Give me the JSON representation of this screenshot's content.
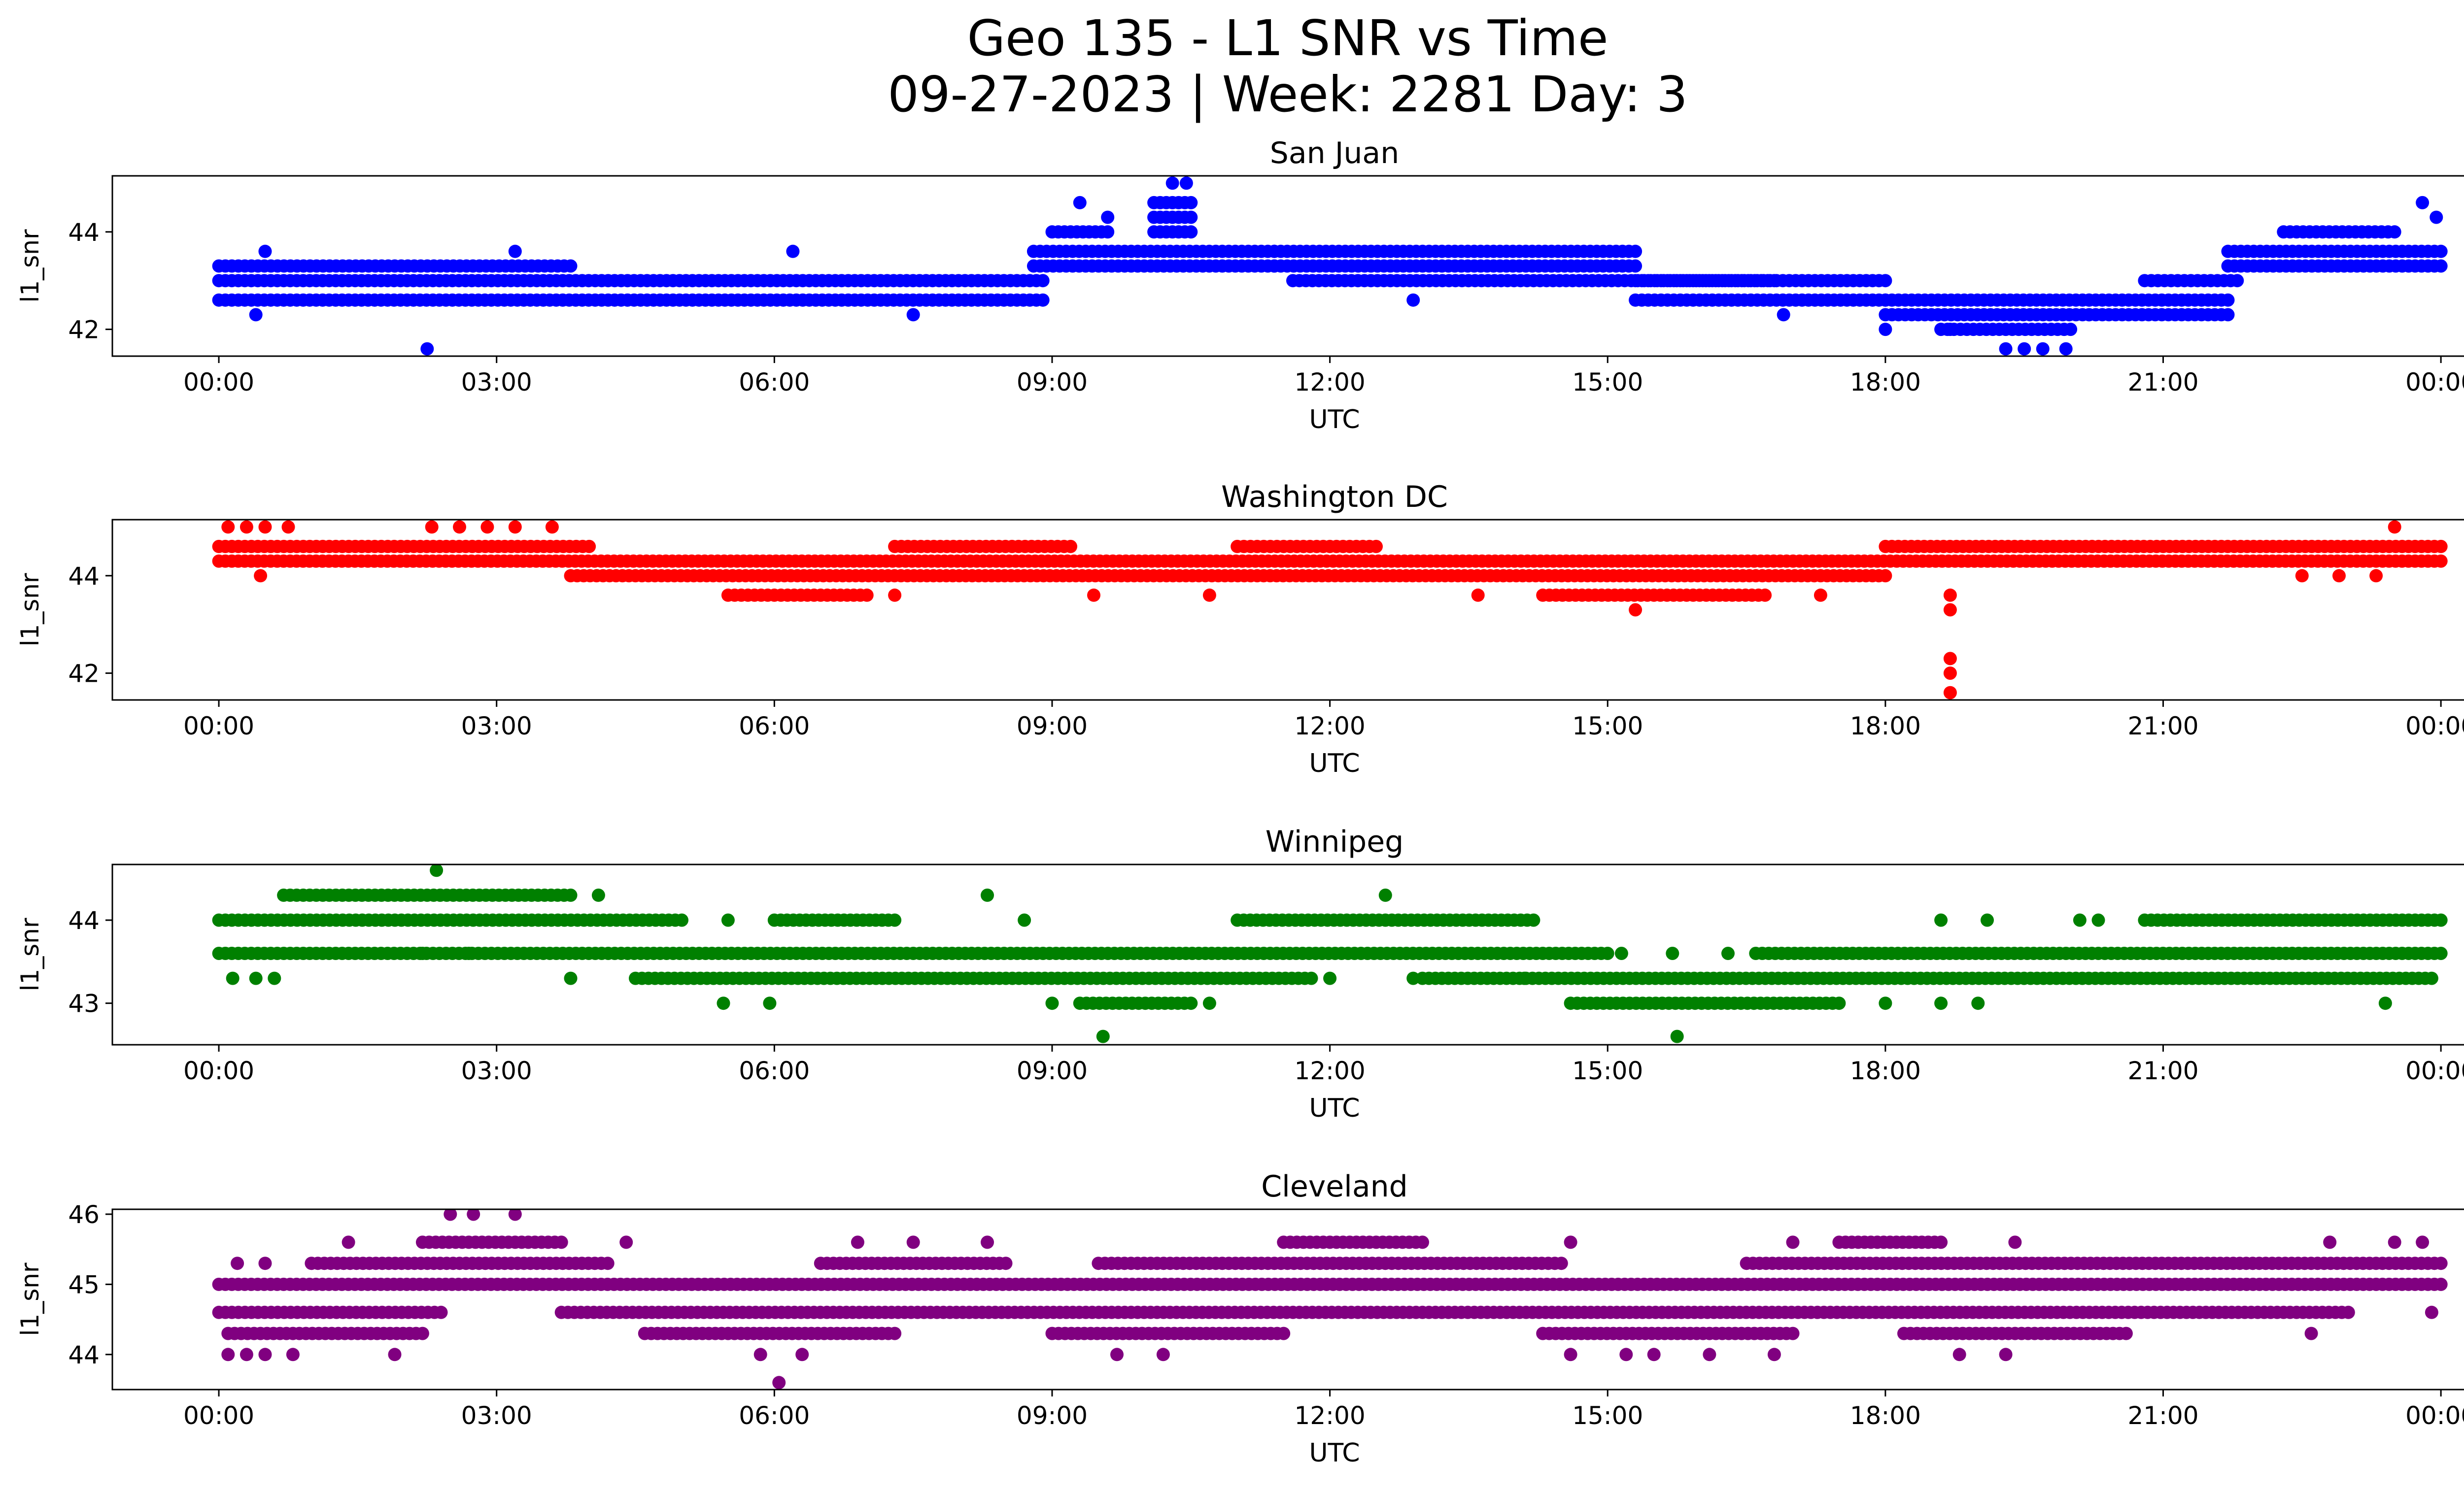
{
  "figure": {
    "title_line1": "Geo 135 - L1 SNR vs Time",
    "title_line2": "09-27-2023 | Week: 2281 Day: 3"
  },
  "chart_data": [
    {
      "type": "scatter",
      "title": "San Juan",
      "xlabel": "UTC",
      "ylabel": "l1_snr",
      "color": "#0000ff",
      "x_unit": "hours UTC",
      "xlim": [
        -1.15,
        25.25
      ],
      "ylim": [
        41.45,
        45.15
      ],
      "x_ticks": [
        0,
        3,
        6,
        9,
        12,
        15,
        18,
        21,
        24
      ],
      "x_tick_labels": [
        "00:00",
        "03:00",
        "06:00",
        "09:00",
        "12:00",
        "15:00",
        "18:00",
        "21:00",
        "00:00"
      ],
      "y_ticks": [
        42,
        44
      ],
      "segments": [
        {
          "x_from": 0.0,
          "x_to": 8.9,
          "levels": [
            42.6,
            43.0
          ]
        },
        {
          "x_from": 0.0,
          "x_to": 3.8,
          "levels": [
            43.3
          ]
        },
        {
          "x_from": 8.8,
          "x_to": 11.4,
          "levels": [
            43.3,
            43.6
          ]
        },
        {
          "x_from": 9.0,
          "x_to": 9.6,
          "levels": [
            44.0
          ]
        },
        {
          "x_from": 10.1,
          "x_to": 10.5,
          "levels": [
            44.0,
            44.3,
            44.6
          ]
        },
        {
          "x_from": 11.4,
          "x_to": 15.3,
          "levels": [
            43.3,
            43.6
          ]
        },
        {
          "x_from": 11.6,
          "x_to": 16.8,
          "levels": [
            43.0
          ]
        },
        {
          "x_from": 15.3,
          "x_to": 18.0,
          "levels": [
            43.0,
            42.6
          ]
        },
        {
          "x_from": 18.0,
          "x_to": 20.2,
          "levels": [
            42.3,
            42.6
          ]
        },
        {
          "x_from": 18.6,
          "x_to": 20.0,
          "levels": [
            42.0
          ]
        },
        {
          "x_from": 20.2,
          "x_to": 21.7,
          "levels": [
            42.3,
            42.6
          ]
        },
        {
          "x_from": 20.8,
          "x_to": 21.8,
          "levels": [
            43.0
          ]
        },
        {
          "x_from": 21.7,
          "x_to": 24.0,
          "levels": [
            43.3,
            43.6
          ]
        },
        {
          "x_from": 22.3,
          "x_to": 23.5,
          "levels": [
            44.0
          ]
        }
      ],
      "points": [
        [
          0.5,
          43.6
        ],
        [
          2.25,
          41.6
        ],
        [
          6.2,
          43.6
        ],
        [
          9.3,
          44.6
        ],
        [
          9.6,
          44.3
        ],
        [
          10.3,
          45.0
        ],
        [
          10.45,
          45.0
        ],
        [
          19.3,
          41.6
        ],
        [
          19.7,
          41.6
        ],
        [
          19.5,
          41.6
        ],
        [
          19.95,
          41.6
        ],
        [
          18.7,
          42.0
        ],
        [
          23.8,
          44.6
        ],
        [
          23.95,
          44.3
        ],
        [
          0.4,
          42.3
        ],
        [
          7.5,
          42.3
        ],
        [
          12.9,
          42.6
        ],
        [
          16.9,
          42.3
        ],
        [
          18.0,
          42.0
        ],
        [
          3.2,
          43.6
        ]
      ]
    },
    {
      "type": "scatter",
      "title": "Washington DC",
      "xlabel": "UTC",
      "ylabel": "l1_snr",
      "color": "#ff0000",
      "x_unit": "hours UTC",
      "xlim": [
        -1.15,
        25.25
      ],
      "ylim": [
        41.45,
        45.15
      ],
      "x_ticks": [
        0,
        3,
        6,
        9,
        12,
        15,
        18,
        21,
        24
      ],
      "x_tick_labels": [
        "00:00",
        "03:00",
        "06:00",
        "09:00",
        "12:00",
        "15:00",
        "18:00",
        "21:00",
        "00:00"
      ],
      "y_ticks": [
        42,
        44
      ],
      "segments": [
        {
          "x_from": 0.0,
          "x_to": 24.0,
          "levels": [
            44.3
          ]
        },
        {
          "x_from": 0.0,
          "x_to": 4.0,
          "levels": [
            44.6
          ]
        },
        {
          "x_from": 3.8,
          "x_to": 18.0,
          "levels": [
            44.0
          ]
        },
        {
          "x_from": 18.0,
          "x_to": 24.0,
          "levels": [
            44.6
          ]
        },
        {
          "x_from": 5.5,
          "x_to": 7.0,
          "levels": [
            43.6
          ]
        },
        {
          "x_from": 14.3,
          "x_to": 16.7,
          "levels": [
            43.6
          ]
        },
        {
          "x_from": 7.3,
          "x_to": 9.2,
          "levels": [
            44.6
          ]
        },
        {
          "x_from": 11.0,
          "x_to": 12.5,
          "levels": [
            44.6
          ]
        }
      ],
      "points": [
        [
          0.1,
          45.0
        ],
        [
          0.3,
          45.0
        ],
        [
          0.5,
          45.0
        ],
        [
          0.75,
          45.0
        ],
        [
          2.3,
          45.0
        ],
        [
          2.6,
          45.0
        ],
        [
          2.9,
          45.0
        ],
        [
          3.2,
          45.0
        ],
        [
          3.6,
          45.0
        ],
        [
          23.5,
          45.0
        ],
        [
          0.45,
          44.0
        ],
        [
          7.3,
          43.6
        ],
        [
          9.45,
          43.6
        ],
        [
          10.7,
          43.6
        ],
        [
          13.6,
          43.6
        ],
        [
          15.3,
          43.3
        ],
        [
          17.3,
          43.6
        ],
        [
          18.7,
          43.6
        ],
        [
          18.7,
          43.3
        ],
        [
          18.7,
          42.3
        ],
        [
          18.7,
          42.0
        ],
        [
          18.7,
          41.6
        ],
        [
          22.5,
          44.0
        ],
        [
          22.9,
          44.0
        ],
        [
          23.3,
          44.0
        ]
      ]
    },
    {
      "type": "scatter",
      "title": "Winnipeg",
      "xlabel": "UTC",
      "ylabel": "l1_snr",
      "color": "#008000",
      "x_unit": "hours UTC",
      "xlim": [
        -1.15,
        25.25
      ],
      "ylim": [
        42.5,
        44.67
      ],
      "x_ticks": [
        0,
        3,
        6,
        9,
        12,
        15,
        18,
        21,
        24
      ],
      "x_tick_labels": [
        "00:00",
        "03:00",
        "06:00",
        "09:00",
        "12:00",
        "15:00",
        "18:00",
        "21:00",
        "00:00"
      ],
      "y_ticks": [
        43,
        44
      ],
      "segments": [
        {
          "x_from": 0.0,
          "x_to": 15.0,
          "levels": [
            43.6
          ]
        },
        {
          "x_from": 16.6,
          "x_to": 24.0,
          "levels": [
            43.6
          ]
        },
        {
          "x_from": 0.0,
          "x_to": 5.0,
          "levels": [
            44.0
          ]
        },
        {
          "x_from": 0.7,
          "x_to": 3.8,
          "levels": [
            44.3
          ]
        },
        {
          "x_from": 4.5,
          "x_to": 11.8,
          "levels": [
            43.3
          ]
        },
        {
          "x_from": 13.0,
          "x_to": 23.9,
          "levels": [
            43.3
          ]
        },
        {
          "x_from": 6.0,
          "x_to": 7.3,
          "levels": [
            44.0
          ]
        },
        {
          "x_from": 11.0,
          "x_to": 14.2,
          "levels": [
            44.0
          ]
        },
        {
          "x_from": 20.8,
          "x_to": 24.0,
          "levels": [
            44.0
          ]
        },
        {
          "x_from": 9.3,
          "x_to": 10.5,
          "levels": [
            43.0
          ]
        },
        {
          "x_from": 14.6,
          "x_to": 17.5,
          "levels": [
            43.0
          ]
        }
      ],
      "points": [
        [
          2.35,
          44.6
        ],
        [
          8.3,
          44.3
        ],
        [
          12.6,
          44.3
        ],
        [
          9.55,
          42.6
        ],
        [
          15.75,
          42.6
        ],
        [
          0.15,
          43.3
        ],
        [
          0.4,
          43.3
        ],
        [
          0.6,
          43.3
        ],
        [
          3.8,
          43.3
        ],
        [
          5.5,
          44.0
        ],
        [
          5.45,
          43.0
        ],
        [
          5.95,
          43.0
        ],
        [
          9.0,
          43.0
        ],
        [
          10.7,
          43.0
        ],
        [
          12.0,
          43.3
        ],
        [
          12.9,
          43.3
        ],
        [
          14.1,
          43.3
        ],
        [
          15.15,
          43.6
        ],
        [
          15.7,
          43.6
        ],
        [
          16.3,
          43.6
        ],
        [
          18.6,
          44.0
        ],
        [
          19.1,
          44.0
        ],
        [
          20.1,
          44.0
        ],
        [
          20.3,
          44.0
        ],
        [
          23.4,
          43.0
        ],
        [
          18.0,
          43.0
        ],
        [
          18.6,
          43.0
        ],
        [
          19.0,
          43.0
        ],
        [
          2.2,
          43.6
        ],
        [
          2.7,
          43.6
        ],
        [
          4.1,
          44.3
        ],
        [
          8.7,
          44.0
        ]
      ]
    },
    {
      "type": "scatter",
      "title": "Cleveland",
      "xlabel": "UTC",
      "ylabel": "l1_snr",
      "color": "#800080",
      "x_unit": "hours UTC",
      "xlim": [
        -1.15,
        25.25
      ],
      "ylim": [
        43.5,
        46.07
      ],
      "x_ticks": [
        0,
        3,
        6,
        9,
        12,
        15,
        18,
        21,
        24
      ],
      "x_tick_labels": [
        "00:00",
        "03:00",
        "06:00",
        "09:00",
        "12:00",
        "15:00",
        "18:00",
        "21:00",
        "00:00"
      ],
      "y_ticks": [
        44,
        45,
        46
      ],
      "segments": [
        {
          "x_from": 0.0,
          "x_to": 24.0,
          "levels": [
            45.0
          ]
        },
        {
          "x_from": 0.0,
          "x_to": 2.4,
          "levels": [
            44.6
          ]
        },
        {
          "x_from": 3.7,
          "x_to": 23.0,
          "levels": [
            44.6
          ]
        },
        {
          "x_from": 1.0,
          "x_to": 4.2,
          "levels": [
            45.3
          ]
        },
        {
          "x_from": 6.5,
          "x_to": 8.5,
          "levels": [
            45.3
          ]
        },
        {
          "x_from": 9.5,
          "x_to": 14.5,
          "levels": [
            45.3
          ]
        },
        {
          "x_from": 16.5,
          "x_to": 24.0,
          "levels": [
            45.3
          ]
        },
        {
          "x_from": 2.2,
          "x_to": 3.7,
          "levels": [
            45.6
          ]
        },
        {
          "x_from": 11.5,
          "x_to": 13.0,
          "levels": [
            45.6
          ]
        },
        {
          "x_from": 17.5,
          "x_to": 18.6,
          "levels": [
            45.6
          ]
        },
        {
          "x_from": 4.6,
          "x_to": 7.3,
          "levels": [
            44.3
          ]
        },
        {
          "x_from": 9.0,
          "x_to": 11.5,
          "levels": [
            44.3
          ]
        },
        {
          "x_from": 14.3,
          "x_to": 17.0,
          "levels": [
            44.3
          ]
        },
        {
          "x_from": 18.2,
          "x_to": 20.6,
          "levels": [
            44.3
          ]
        },
        {
          "x_from": 0.1,
          "x_to": 2.2,
          "levels": [
            44.3
          ]
        }
      ],
      "points": [
        [
          2.5,
          46.0
        ],
        [
          2.75,
          46.0
        ],
        [
          3.2,
          46.0
        ],
        [
          6.05,
          43.6
        ],
        [
          0.1,
          44.0
        ],
        [
          0.3,
          44.0
        ],
        [
          0.5,
          44.0
        ],
        [
          0.8,
          44.0
        ],
        [
          1.9,
          44.0
        ],
        [
          5.85,
          44.0
        ],
        [
          6.3,
          44.0
        ],
        [
          9.7,
          44.0
        ],
        [
          10.2,
          44.0
        ],
        [
          14.6,
          44.0
        ],
        [
          15.2,
          44.0
        ],
        [
          15.5,
          44.0
        ],
        [
          16.1,
          44.0
        ],
        [
          16.8,
          44.0
        ],
        [
          18.8,
          44.0
        ],
        [
          19.3,
          44.0
        ],
        [
          0.2,
          45.3
        ],
        [
          0.5,
          45.3
        ],
        [
          1.4,
          45.6
        ],
        [
          4.4,
          45.6
        ],
        [
          6.9,
          45.6
        ],
        [
          7.5,
          45.6
        ],
        [
          8.3,
          45.6
        ],
        [
          14.6,
          45.6
        ],
        [
          17.0,
          45.6
        ],
        [
          19.4,
          45.6
        ],
        [
          22.8,
          45.6
        ],
        [
          23.5,
          45.6
        ],
        [
          23.8,
          45.6
        ],
        [
          23.9,
          44.6
        ],
        [
          22.6,
          44.3
        ]
      ]
    }
  ]
}
